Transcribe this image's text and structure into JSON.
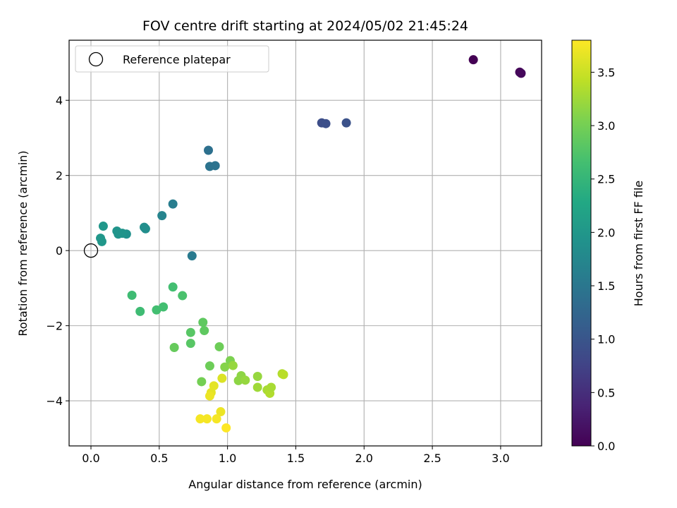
{
  "chart_data": {
    "type": "scatter",
    "title": "FOV centre drift starting at 2024/05/02 21:45:24",
    "xlabel": "Angular distance from reference (arcmin)",
    "ylabel": "Rotation from reference (arcmin)",
    "xlim": [
      -0.16,
      3.3
    ],
    "ylim": [
      -5.2,
      5.6
    ],
    "xticks": [
      0.0,
      0.5,
      1.0,
      1.5,
      2.0,
      2.5,
      3.0
    ],
    "xtick_labels": [
      "0.0",
      "0.5",
      "1.0",
      "1.5",
      "2.0",
      "2.5",
      "3.0"
    ],
    "yticks": [
      -4,
      -2,
      0,
      2,
      4
    ],
    "ytick_labels": [
      "−4",
      "−2",
      "0",
      "2",
      "4"
    ],
    "grid": true,
    "legend": {
      "location": "upper left",
      "entries": [
        "Reference platepar"
      ]
    },
    "reference_point": {
      "x": 0.0,
      "y": 0.0
    },
    "colorbar": {
      "label": "Hours from first FF file",
      "colormap": "viridis",
      "range": [
        0.0,
        3.8
      ],
      "ticks": [
        0.0,
        0.5,
        1.0,
        1.5,
        2.0,
        2.5,
        3.0,
        3.5
      ],
      "tick_labels": [
        "0.0",
        "0.5",
        "1.0",
        "1.5",
        "2.0",
        "2.5",
        "3.0",
        "3.5"
      ]
    },
    "points": [
      {
        "x": 2.8,
        "y": 5.08,
        "hours": 0.0
      },
      {
        "x": 3.14,
        "y": 4.75,
        "hours": 0.05
      },
      {
        "x": 3.15,
        "y": 4.72,
        "hours": 0.08
      },
      {
        "x": 1.69,
        "y": 3.4,
        "hours": 0.9
      },
      {
        "x": 1.72,
        "y": 3.38,
        "hours": 0.92
      },
      {
        "x": 1.87,
        "y": 3.4,
        "hours": 0.95
      },
      {
        "x": 0.86,
        "y": 2.67,
        "hours": 1.4
      },
      {
        "x": 0.87,
        "y": 2.24,
        "hours": 1.45
      },
      {
        "x": 0.91,
        "y": 2.26,
        "hours": 1.45
      },
      {
        "x": 0.6,
        "y": 1.24,
        "hours": 1.6
      },
      {
        "x": 0.52,
        "y": 0.93,
        "hours": 1.7
      },
      {
        "x": 0.74,
        "y": -0.14,
        "hours": 1.55
      },
      {
        "x": 0.39,
        "y": 0.62,
        "hours": 1.85
      },
      {
        "x": 0.4,
        "y": 0.58,
        "hours": 1.85
      },
      {
        "x": 0.26,
        "y": 0.44,
        "hours": 1.9
      },
      {
        "x": 0.19,
        "y": 0.52,
        "hours": 1.95
      },
      {
        "x": 0.2,
        "y": 0.44,
        "hours": 1.95
      },
      {
        "x": 0.23,
        "y": 0.46,
        "hours": 1.95
      },
      {
        "x": 0.09,
        "y": 0.65,
        "hours": 2.0
      },
      {
        "x": 0.07,
        "y": 0.33,
        "hours": 2.0
      },
      {
        "x": 0.08,
        "y": 0.24,
        "hours": 2.0
      },
      {
        "x": 0.3,
        "y": -1.19,
        "hours": 2.6
      },
      {
        "x": 0.36,
        "y": -1.62,
        "hours": 2.6
      },
      {
        "x": 0.48,
        "y": -1.58,
        "hours": 2.65
      },
      {
        "x": 0.53,
        "y": -1.5,
        "hours": 2.65
      },
      {
        "x": 0.6,
        "y": -0.97,
        "hours": 2.65
      },
      {
        "x": 0.67,
        "y": -1.2,
        "hours": 2.7
      },
      {
        "x": 0.73,
        "y": -2.18,
        "hours": 2.8
      },
      {
        "x": 0.73,
        "y": -2.47,
        "hours": 2.8
      },
      {
        "x": 0.82,
        "y": -1.91,
        "hours": 2.85
      },
      {
        "x": 0.83,
        "y": -2.13,
        "hours": 2.85
      },
      {
        "x": 0.61,
        "y": -2.58,
        "hours": 2.9
      },
      {
        "x": 0.94,
        "y": -2.56,
        "hours": 2.95
      },
      {
        "x": 0.87,
        "y": -3.07,
        "hours": 2.95
      },
      {
        "x": 0.81,
        "y": -3.49,
        "hours": 3.0
      },
      {
        "x": 1.02,
        "y": -2.93,
        "hours": 3.05
      },
      {
        "x": 0.98,
        "y": -3.1,
        "hours": 3.1
      },
      {
        "x": 1.04,
        "y": -3.06,
        "hours": 3.2
      },
      {
        "x": 1.08,
        "y": -3.46,
        "hours": 3.15
      },
      {
        "x": 1.1,
        "y": -3.33,
        "hours": 3.15
      },
      {
        "x": 1.13,
        "y": -3.45,
        "hours": 3.2
      },
      {
        "x": 1.22,
        "y": -3.35,
        "hours": 3.2
      },
      {
        "x": 1.22,
        "y": -3.64,
        "hours": 3.25
      },
      {
        "x": 1.29,
        "y": -3.71,
        "hours": 3.3
      },
      {
        "x": 1.31,
        "y": -3.8,
        "hours": 3.35
      },
      {
        "x": 1.32,
        "y": -3.64,
        "hours": 3.3
      },
      {
        "x": 1.4,
        "y": -3.28,
        "hours": 3.35
      },
      {
        "x": 1.41,
        "y": -3.3,
        "hours": 3.4
      },
      {
        "x": 0.96,
        "y": -3.4,
        "hours": 3.6
      },
      {
        "x": 0.9,
        "y": -3.6,
        "hours": 3.65
      },
      {
        "x": 0.88,
        "y": -3.78,
        "hours": 3.65
      },
      {
        "x": 0.87,
        "y": -3.87,
        "hours": 3.7
      },
      {
        "x": 0.95,
        "y": -4.29,
        "hours": 3.7
      },
      {
        "x": 0.8,
        "y": -4.48,
        "hours": 3.75
      },
      {
        "x": 0.85,
        "y": -4.48,
        "hours": 3.75
      },
      {
        "x": 0.92,
        "y": -4.48,
        "hours": 3.75
      },
      {
        "x": 0.99,
        "y": -4.72,
        "hours": 3.8
      }
    ]
  }
}
